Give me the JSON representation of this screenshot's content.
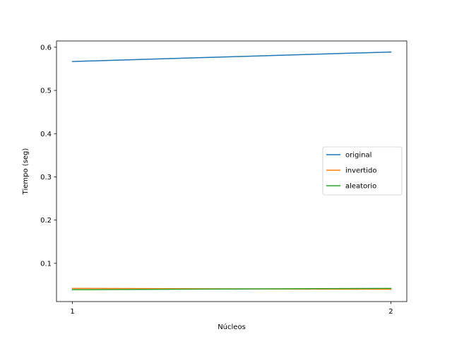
{
  "chart_data": {
    "type": "line",
    "title": "",
    "xlabel": "Núcleos",
    "ylabel": "Tiempo (seg)",
    "xlim": [
      0.95,
      2.05
    ],
    "ylim": [
      0.0115,
      0.6145
    ],
    "xticks": [
      1,
      2
    ],
    "xtick_labels": [
      "1",
      "2"
    ],
    "yticks": [
      0.1,
      0.2,
      0.3,
      0.4,
      0.5,
      0.6
    ],
    "ytick_labels": [
      "0.1",
      "0.2",
      "0.3",
      "0.4",
      "0.5",
      "0.6"
    ],
    "grid": false,
    "legend_position": "center-right",
    "x": [
      1,
      2
    ],
    "series": [
      {
        "name": "original",
        "color": "#1f77b4",
        "values": [
          0.567,
          0.589
        ]
      },
      {
        "name": "invertido",
        "color": "#ff7f0e",
        "values": [
          0.042,
          0.04
        ]
      },
      {
        "name": "aleatorio",
        "color": "#2ca02c",
        "values": [
          0.039,
          0.042
        ]
      }
    ]
  }
}
